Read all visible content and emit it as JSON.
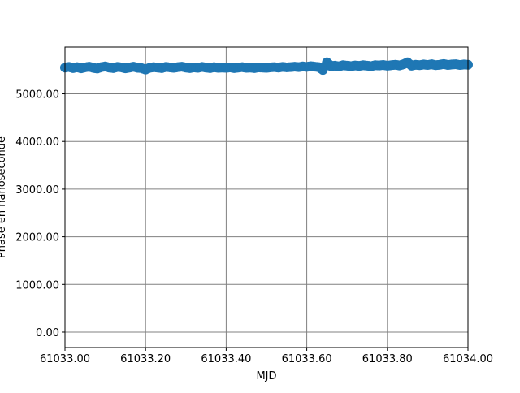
{
  "chart_data": {
    "type": "scatter",
    "title": "",
    "xlabel": "MJD",
    "ylabel": "Phase en nanoseconde",
    "xlim": [
      61033.0,
      61034.0
    ],
    "ylim": [
      -324,
      5980
    ],
    "grid": true,
    "grid_color": "#808080",
    "marker_color": "#1f77b4",
    "x_ticks": [
      61033.0,
      61033.2,
      61033.4,
      61033.6,
      61033.8,
      61034.0
    ],
    "x_tick_labels": [
      "61033.00",
      "61033.20",
      "61033.40",
      "61033.60",
      "61033.80",
      "61034.00"
    ],
    "y_ticks": [
      0,
      1000,
      2000,
      3000,
      4000,
      5000
    ],
    "y_tick_labels": [
      "0.00",
      "1000.00",
      "2000.00",
      "3000.00",
      "4000.00",
      "5000.00"
    ],
    "x_start": 61033.0,
    "x_step": 0.01,
    "values": [
      5550,
      5565,
      5540,
      5560,
      5535,
      5555,
      5570,
      5545,
      5530,
      5560,
      5575,
      5550,
      5540,
      5565,
      5555,
      5535,
      5550,
      5570,
      5545,
      5540,
      5510,
      5545,
      5560,
      5550,
      5540,
      5565,
      5555,
      5545,
      5560,
      5570,
      5550,
      5540,
      5555,
      5545,
      5565,
      5550,
      5540,
      5560,
      5545,
      5550,
      5545,
      5555,
      5540,
      5550,
      5560,
      5545,
      5550,
      5540,
      5555,
      5550,
      5545,
      5555,
      5560,
      5550,
      5565,
      5555,
      5560,
      5570,
      5560,
      5575,
      5565,
      5580,
      5570,
      5560,
      5500,
      5660,
      5580,
      5590,
      5575,
      5600,
      5590,
      5580,
      5595,
      5585,
      5600,
      5590,
      5580,
      5600,
      5595,
      5605,
      5590,
      5600,
      5610,
      5595,
      5620,
      5660,
      5590,
      5610,
      5600,
      5615,
      5605,
      5620,
      5600,
      5610,
      5625,
      5605,
      5615,
      5620,
      5605,
      5615,
      5610
    ]
  }
}
